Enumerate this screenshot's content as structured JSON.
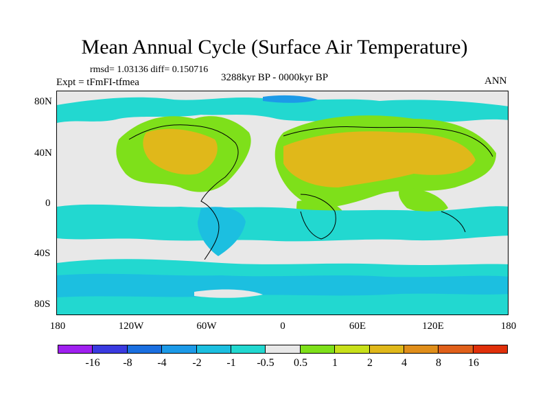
{
  "title": "Mean Annual Cycle (Surface Air Temperature)",
  "stats": "rmsd= 1.03136 diff= 0.150716",
  "experiment": "Expt = tFmFI-tfmea",
  "period": "3288kyr BP - 0000kyr BP",
  "season": "ANN",
  "y_labels": [
    "80N",
    "40N",
    "0",
    "40S",
    "80S"
  ],
  "x_labels": [
    "180",
    "120W",
    "60W",
    "0",
    "60E",
    "120E",
    "180"
  ],
  "colorbar": {
    "colors": [
      "#a020f0",
      "#3a3ae0",
      "#1a6fe0",
      "#1c9ae8",
      "#1cbfe0",
      "#22d8d0",
      "#e8e8e8",
      "#7ee01a",
      "#c8e01a",
      "#e0b81a",
      "#e08e1a",
      "#e0601a",
      "#e0300a"
    ],
    "labels": [
      "-16",
      "-8",
      "-4",
      "-2",
      "-1",
      "-0.5",
      "0.5",
      "1",
      "2",
      "4",
      "8",
      "16"
    ]
  },
  "colors": {
    "neutral": "#e8e8e8",
    "cool_light": "#22d8d0",
    "cool_mid": "#1cbfe0",
    "cool_dark": "#1c9ae8",
    "cool_deep": "#1a6fe0",
    "warm_light": "#7ee01a",
    "warm_mid": "#c8e01a",
    "warm_orange": "#e0b81a"
  }
}
